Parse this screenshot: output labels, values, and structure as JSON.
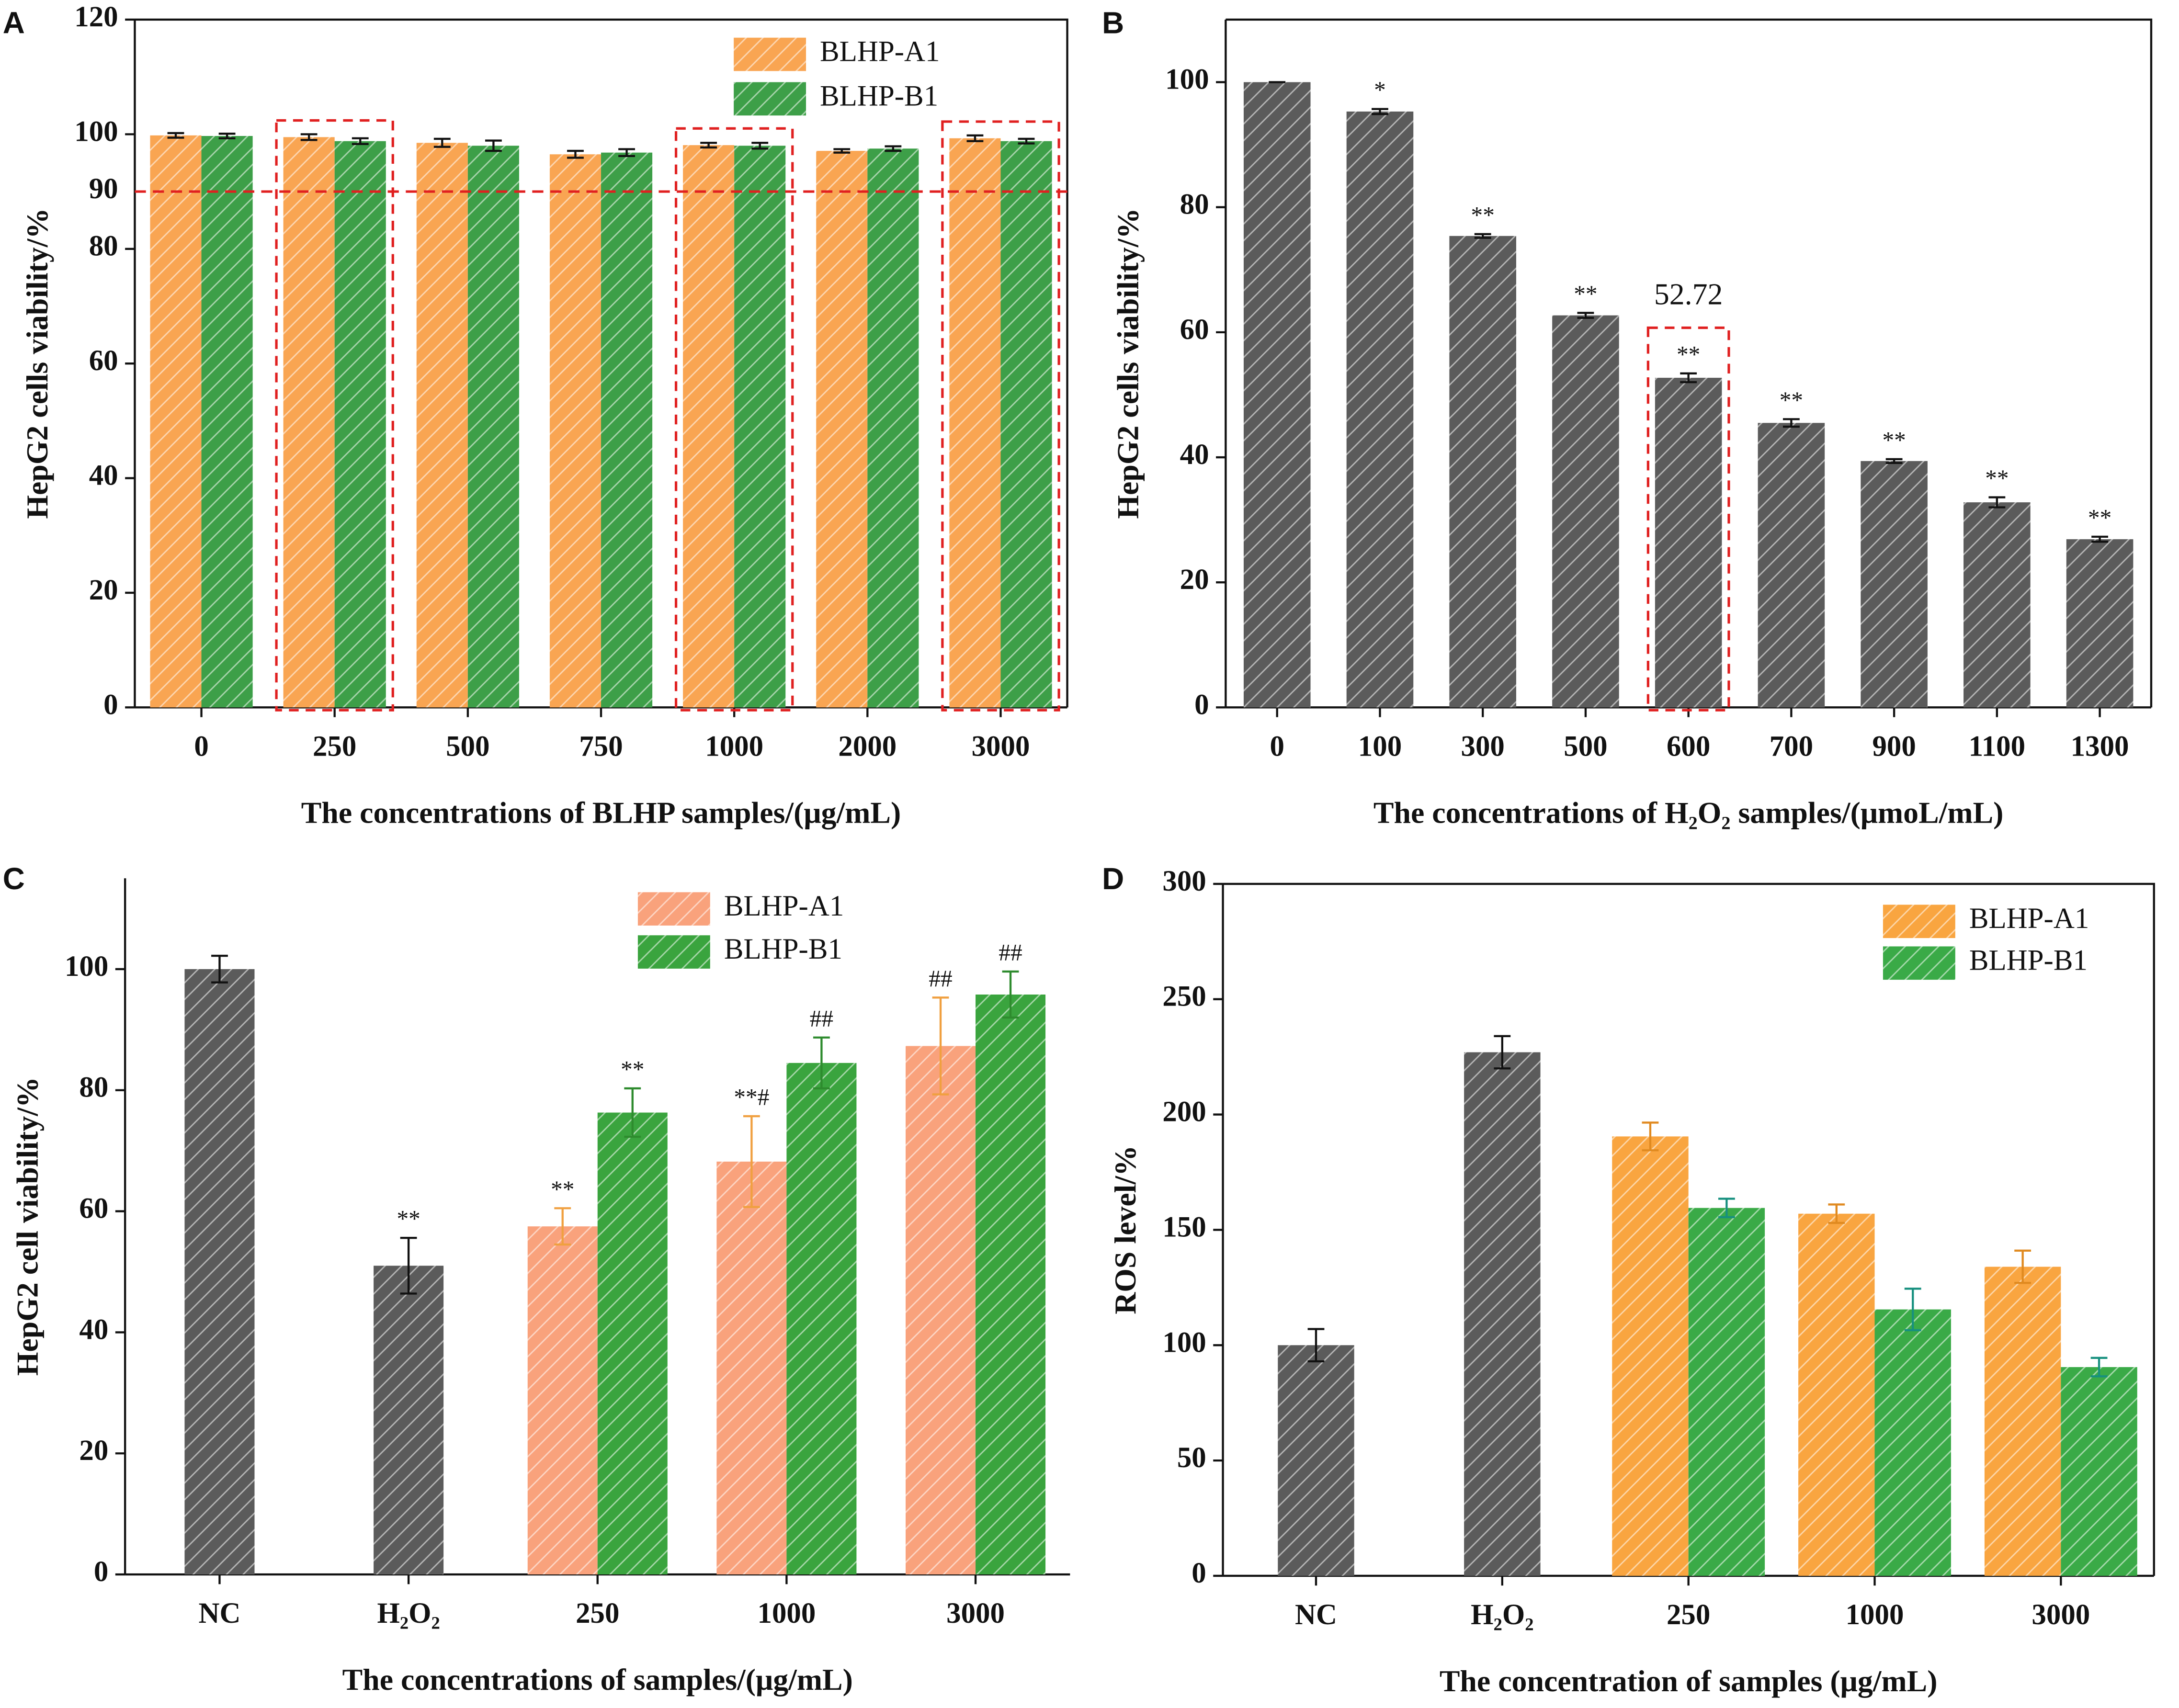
{
  "chart_data": [
    {
      "type": "bar",
      "panel_label": "A",
      "x_label": "The concentrations of BLHP samples/(μg/mL)",
      "y_label": "HepG2 cells viability/%",
      "categories": [
        "0",
        "250",
        "500",
        "750",
        "1000",
        "2000",
        "3000"
      ],
      "series": [
        {
          "name": "BLHP-A1",
          "color": "#f9a552",
          "values": [
            99.8,
            99.5,
            98.5,
            96.5,
            98.1,
            97.1,
            99.3
          ],
          "errors": [
            0.4,
            0.5,
            0.7,
            0.6,
            0.4,
            0.3,
            0.5
          ]
        },
        {
          "name": "BLHP-B1",
          "color": "#3d9f48",
          "values": [
            99.7,
            98.8,
            98.0,
            96.8,
            98.0,
            97.5,
            98.8
          ],
          "errors": [
            0.4,
            0.5,
            0.9,
            0.6,
            0.5,
            0.4,
            0.4
          ]
        }
      ],
      "ylim": [
        0,
        120
      ],
      "yticks": [
        0,
        20,
        40,
        60,
        80,
        100,
        120
      ],
      "hline": 90,
      "hline_color": "#e02020",
      "highlight": [
        1,
        4,
        6
      ],
      "legend": "upper right"
    },
    {
      "type": "bar",
      "panel_label": "B",
      "x_label": "The concentrations of H₂O₂ samples/(μmoL/mL)",
      "y_label": "HepG2 cells viability/%",
      "categories": [
        "0",
        "100",
        "300",
        "500",
        "600",
        "700",
        "900",
        "1100",
        "1300"
      ],
      "series": [
        {
          "color": "#5b5b5b",
          "values": [
            100,
            95.3,
            75.4,
            62.7,
            52.72,
            45.5,
            39.4,
            32.8,
            26.9
          ],
          "errors": [
            0,
            0.4,
            0.3,
            0.4,
            0.7,
            0.6,
            0.3,
            0.8,
            0.4
          ],
          "annotations": [
            null,
            "*",
            "**",
            "**",
            "**",
            "**",
            "**",
            "**",
            "**"
          ],
          "value_labels": [
            null,
            null,
            null,
            null,
            "52.72",
            null,
            null,
            null,
            null
          ]
        }
      ],
      "ylim": [
        0,
        110
      ],
      "yticks": [
        0,
        20,
        40,
        60,
        80,
        100
      ],
      "highlight": [
        4
      ]
    },
    {
      "type": "bar",
      "panel_label": "C",
      "x_label": "The concentrations of samples/(μg/mL)",
      "y_label": "HepG2 cell viability/%",
      "categories": [
        "NC",
        "H₂O₂",
        "250",
        "1000",
        "3000"
      ],
      "series": [
        {
          "color": "#5b5b5b",
          "values": [
            100,
            51,
            null,
            null,
            null
          ],
          "errors": [
            2.2,
            4.6,
            null,
            null,
            null
          ],
          "annotations": [
            null,
            "**",
            null,
            null,
            null
          ]
        },
        {
          "name": "BLHP-A1",
          "color": "#f9a27c",
          "error_color": "#f0a040",
          "values": [
            null,
            null,
            57.5,
            68.2,
            87.3
          ],
          "errors": [
            null,
            null,
            3.0,
            7.5,
            8.0
          ],
          "annotations": [
            null,
            null,
            "**",
            "**#",
            "##"
          ]
        },
        {
          "name": "BLHP-B1",
          "color": "#3aa43e",
          "error_color": "#2e8b2e",
          "values": [
            null,
            null,
            76.3,
            84.5,
            95.8
          ],
          "errors": [
            null,
            null,
            4.0,
            4.2,
            3.8
          ],
          "annotations": [
            null,
            null,
            "**",
            "##",
            "##"
          ]
        }
      ],
      "ylim": [
        0,
        115
      ],
      "yticks": [
        0,
        20,
        40,
        60,
        80,
        100
      ],
      "legend": "upper center"
    },
    {
      "type": "bar",
      "panel_label": "D",
      "x_label": "The concentration of samples (μg/mL)",
      "y_label": "ROS level/%",
      "categories": [
        "NC",
        "H₂O₂",
        "250",
        "1000",
        "3000"
      ],
      "series": [
        {
          "color": "#5b5b5b",
          "values": [
            100,
            227,
            null,
            null,
            null
          ],
          "errors": [
            7,
            7,
            null,
            null,
            null
          ]
        },
        {
          "name": "BLHP-A1",
          "color": "#f9a540",
          "error_color": "#e08a20",
          "values": [
            null,
            null,
            190.5,
            157,
            134
          ],
          "errors": [
            null,
            null,
            6,
            4,
            7
          ]
        },
        {
          "name": "BLHP-B1",
          "color": "#3aaa47",
          "error_color": "#17907f",
          "values": [
            null,
            null,
            159.5,
            115.5,
            90.5
          ],
          "errors": [
            null,
            null,
            4,
            9,
            4
          ]
        }
      ],
      "ylim": [
        0,
        300
      ],
      "yticks": [
        0,
        50,
        100,
        150,
        200,
        250,
        300
      ],
      "legend": "upper right"
    }
  ]
}
